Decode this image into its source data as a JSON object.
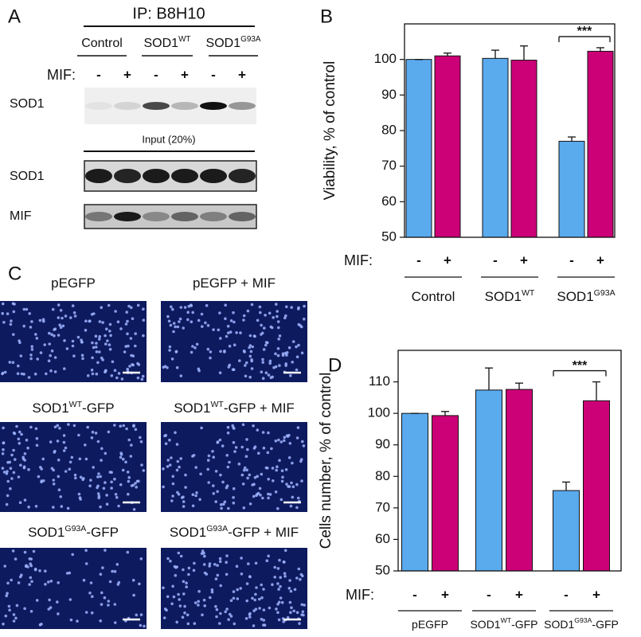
{
  "panel_a": {
    "label": "A",
    "title": "IP: B8H10",
    "groups": [
      {
        "name": "Control"
      },
      {
        "name": "SOD1",
        "sup": "WT"
      },
      {
        "name": "SOD1",
        "sup": "G93A"
      }
    ],
    "mif_label": "MIF:",
    "mif_signs": [
      "-",
      "+",
      "-",
      "+",
      "-",
      "+"
    ],
    "ip_rows": [
      "SOD1"
    ],
    "input_label": "Input (20%)",
    "input_rows": [
      "SOD1",
      "MIF"
    ]
  },
  "panel_c": {
    "label": "C",
    "images": [
      {
        "name": "pEGFP"
      },
      {
        "name": "pEGFP + MIF"
      },
      {
        "name": "SOD1",
        "sup": "WT",
        "suffix": "-GFP"
      },
      {
        "name": "SOD1",
        "sup": "WT",
        "suffix": "-GFP + MIF"
      },
      {
        "name": "SOD1",
        "sup": "G93A",
        "suffix": "-GFP"
      },
      {
        "name": "SOD1",
        "sup": "G93A",
        "suffix": "-GFP + MIF"
      }
    ]
  },
  "chart_data": [
    {
      "type": "bar",
      "panel_label": "B",
      "y_label": "Viability, % of control",
      "x_label": "MIF:",
      "categories": [
        "-",
        "+",
        "-",
        "+",
        "-",
        "+"
      ],
      "values": [
        100,
        101,
        100.3,
        99.8,
        77,
        102.3
      ],
      "errors": [
        0,
        0.8,
        2.3,
        4,
        1.2,
        1
      ],
      "colors": [
        "#5aaaee",
        "#cc0077",
        "#5aaaee",
        "#cc0077",
        "#5aaaee",
        "#cc0077"
      ],
      "groups": [
        {
          "name": "Control"
        },
        {
          "name": "SOD1",
          "sup": "WT"
        },
        {
          "name": "SOD1",
          "sup": "G93A"
        }
      ],
      "annotation": "***",
      "ylim": [
        50,
        110
      ],
      "yticks": [
        50,
        60,
        70,
        80,
        90,
        100
      ]
    },
    {
      "type": "bar",
      "panel_label": "D",
      "y_label": "Cells number, % of control",
      "x_label": "MIF:",
      "categories": [
        "-",
        "+",
        "-",
        "+",
        "-",
        "+"
      ],
      "values": [
        100,
        99.3,
        107.4,
        107.6,
        75.5,
        104
      ],
      "errors": [
        0,
        1.3,
        7,
        2,
        2.7,
        6
      ],
      "colors": [
        "#5aaaee",
        "#cc0077",
        "#5aaaee",
        "#cc0077",
        "#5aaaee",
        "#cc0077"
      ],
      "groups": [
        {
          "name": "pEGFP"
        },
        {
          "name": "SOD1",
          "sup": "WT",
          "suffix": "-GFP"
        },
        {
          "name": "SOD1",
          "sup": "G93A",
          "suffix": "-GFP"
        }
      ],
      "annotation": "***",
      "ylim": [
        50,
        120
      ],
      "yticks": [
        50,
        60,
        70,
        80,
        90,
        100,
        110
      ]
    }
  ]
}
